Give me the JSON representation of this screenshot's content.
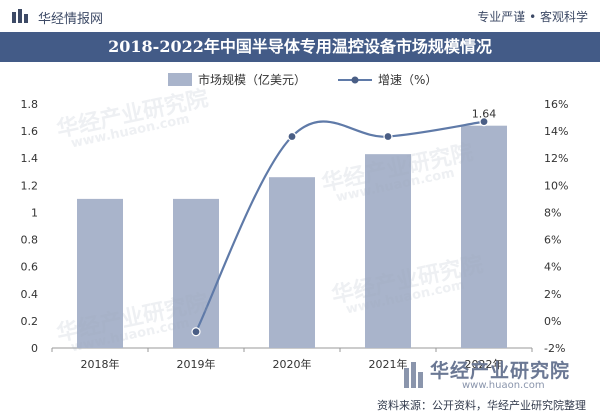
{
  "header": {
    "brand": "华经情报网",
    "slogan": "专业严谨 • 客观科学"
  },
  "source": "资料来源：公开资料，华经产业研究院整理",
  "watermarks": {
    "name": "华经产业研究院",
    "url": "www.huaon.com"
  },
  "colors": {
    "title_bar": "#435b87",
    "bar": "#a9b4cb",
    "line": "#5f7aa8",
    "marker": "#4a5e85"
  },
  "chart_data": {
    "type": "bar",
    "title": "2018-2022年中国半导体专用温控设备市场规模情况",
    "categories": [
      "2018年",
      "2019年",
      "2020年",
      "2021年",
      "2022年"
    ],
    "series": [
      {
        "name": "市场规模（亿美元）",
        "type": "bar",
        "axis": "left",
        "values": [
          1.1,
          1.1,
          1.26,
          1.43,
          1.64
        ]
      },
      {
        "name": "增速（%）",
        "type": "line",
        "axis": "right",
        "values": [
          null,
          -0.8,
          13.6,
          13.6,
          14.7
        ]
      }
    ],
    "data_labels": [
      {
        "category": "2022年",
        "text": "1.64"
      }
    ],
    "y_left": {
      "ticks": [
        "0",
        "0.2",
        "0.4",
        "0.6",
        "0.8",
        "1",
        "1.2",
        "1.4",
        "1.6",
        "1.8"
      ],
      "ylim": [
        0,
        1.8
      ]
    },
    "y_right": {
      "ticks": [
        "-2%",
        "0%",
        "2%",
        "4%",
        "6%",
        "8%",
        "10%",
        "12%",
        "14%",
        "16%"
      ],
      "ylim": [
        -2,
        16
      ]
    },
    "legend_position": "top-center",
    "grid": false
  }
}
